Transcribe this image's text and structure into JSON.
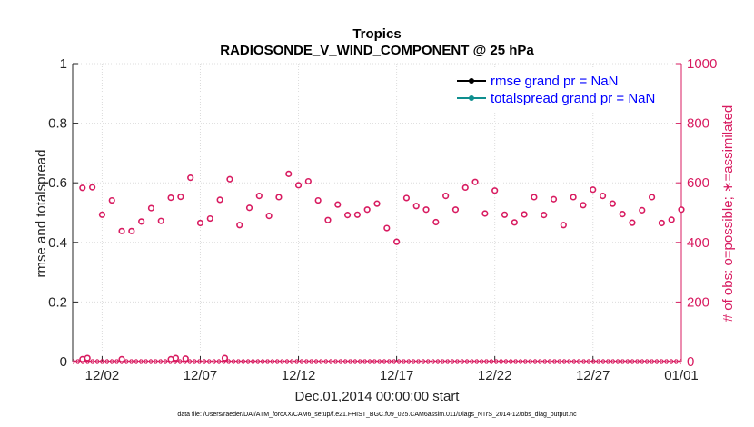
{
  "colors": {
    "rmse": "#000000",
    "spread": "#0f8f8f",
    "obs": "#d81b60",
    "legend_text": "#0000ff",
    "axis": "#262626",
    "grid": "#dcdcdc"
  },
  "chart_data": {
    "type": "line",
    "title": "Tropics",
    "subtitle": "RADIOSONDE_V_WIND_COMPONENT @ 25 hPa",
    "xlabel": "Dec.01,2014 00:00:00 start",
    "ylabel": "rmse and totalspread",
    "ylabel_right": "# of obs: o=possible; ∗=assimilated",
    "xlim": [
      0.5,
      31.5
    ],
    "ylim": [
      0,
      1
    ],
    "ylim_right": [
      0,
      1000
    ],
    "x_ticks": [
      {
        "x": 2,
        "label": "12/02"
      },
      {
        "x": 7,
        "label": "12/07"
      },
      {
        "x": 12,
        "label": "12/12"
      },
      {
        "x": 17,
        "label": "12/17"
      },
      {
        "x": 22,
        "label": "12/22"
      },
      {
        "x": 27,
        "label": "12/27"
      },
      {
        "x": 32,
        "label": "01/01"
      }
    ],
    "y_ticks": [
      "0",
      "0.2",
      "0.4",
      "0.6",
      "0.8",
      "1"
    ],
    "y_ticks_right": [
      "0",
      "200",
      "400",
      "600",
      "800",
      "1000"
    ],
    "grid": true,
    "legend_position": "top-right",
    "series": [
      {
        "name": "rmse grand pr = NaN",
        "marker": "filled-circle",
        "values": []
      },
      {
        "name": "totalspread grand pr = NaN",
        "marker": "filled-circle",
        "values": []
      },
      {
        "name": "obs possible",
        "axis": "right",
        "marker": "o",
        "x": [
          1.0,
          1.5,
          2.0,
          2.5,
          3.0,
          3.5,
          4.0,
          4.5,
          5.0,
          5.5,
          6.0,
          6.5,
          7.0,
          7.5,
          8.0,
          8.5,
          9.0,
          9.5,
          10.0,
          10.5,
          11.0,
          11.5,
          12.0,
          12.5,
          13.0,
          13.5,
          14.0,
          14.5,
          15.0,
          15.5,
          16.0,
          16.5,
          17.0,
          17.5,
          18.0,
          18.5,
          19.0,
          19.5,
          20.0,
          20.5,
          21.0,
          21.5,
          22.0,
          22.5,
          23.0,
          23.5,
          24.0,
          24.5,
          25.0,
          25.5,
          26.0,
          26.5,
          27.0,
          27.5,
          28.0,
          28.5,
          29.0,
          29.5,
          30.0,
          30.5,
          31.0,
          31.5
        ],
        "values": [
          583,
          585,
          493,
          541,
          438,
          438,
          470,
          515,
          472,
          550,
          553,
          617,
          465,
          480,
          543,
          612,
          458,
          516,
          556,
          489,
          552,
          630,
          592,
          605,
          541,
          475,
          527,
          492,
          493,
          510,
          530,
          448,
          402,
          549,
          522,
          510,
          468,
          556,
          510,
          584,
          603,
          497,
          574,
          493,
          467,
          494,
          552,
          492,
          545,
          458,
          552,
          525,
          577,
          556,
          530,
          495,
          466,
          508,
          552,
          465,
          476,
          510
        ]
      },
      {
        "name": "obs assimilated",
        "axis": "right",
        "marker": "*",
        "values": []
      },
      {
        "name": "obs possible (near zero)",
        "axis": "right",
        "marker": "o",
        "x": [
          1.0,
          1.25,
          3.0,
          5.5,
          5.75,
          6.25,
          8.25
        ],
        "values": [
          8,
          12,
          8,
          8,
          12,
          10,
          12
        ]
      }
    ]
  },
  "legend": {
    "rmse": "rmse grand pr = NaN",
    "spread": "totalspread grand pr = NaN"
  },
  "footnote": "data file: /Users/raeder/DAI/ATM_forcXX/CAM6_setup/f.e21.FHIST_BGC.f09_025.CAM6assim.011/Diags_NTrS_2014-12/obs_diag_output.nc"
}
